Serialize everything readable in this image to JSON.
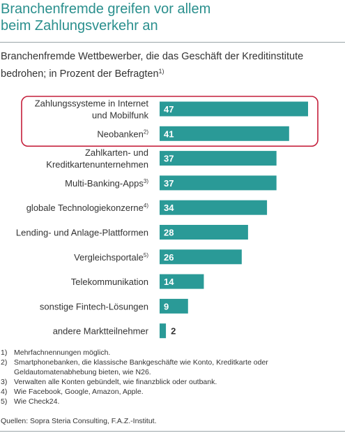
{
  "title_lines": [
    "Branchenfremde greifen vor allem",
    "beim Zahlungsverkehr an"
  ],
  "subtitle": {
    "line1": "Branchenfremde Wettbewerber, die das Geschäft der Kreditinstitute",
    "line2": "bedrohen; in Prozent der Befragten",
    "footnote_ref": "1)"
  },
  "chart_data": {
    "type": "bar",
    "orientation": "horizontal",
    "categories": [
      {
        "lines": [
          "Zahlungssysteme in Internet",
          "und Mobilfunk"
        ],
        "footnote": ""
      },
      {
        "lines": [
          "Neobanken"
        ],
        "footnote": "2)"
      },
      {
        "lines": [
          "Zahlkarten- und",
          "Kreditkartenunternehmen"
        ],
        "footnote": ""
      },
      {
        "lines": [
          "Multi-Banking-Apps"
        ],
        "footnote": "3)"
      },
      {
        "lines": [
          "globale Technologiekonzerne"
        ],
        "footnote": "4)"
      },
      {
        "lines": [
          "Lending- und Anlage-Plattformen"
        ],
        "footnote": ""
      },
      {
        "lines": [
          "Vergleichsportale"
        ],
        "footnote": "5)"
      },
      {
        "lines": [
          "Telekommunikation"
        ],
        "footnote": ""
      },
      {
        "lines": [
          "sonstige Fintech-Lösungen"
        ],
        "footnote": ""
      },
      {
        "lines": [
          "andere Marktteilnehmer"
        ],
        "footnote": ""
      }
    ],
    "values": [
      47,
      41,
      37,
      37,
      34,
      28,
      26,
      14,
      9,
      2
    ],
    "highlighted_indices": [
      0,
      1
    ],
    "xlim": [
      0,
      47
    ],
    "grid": false,
    "legend": false,
    "colors": {
      "bar": "#2a9a97",
      "label_inside": "#ffffff",
      "label_outside": "#333333",
      "highlight": "#c41e3a"
    }
  },
  "footnotes": [
    {
      "num": "1)",
      "text": "Mehrfachnennungen möglich."
    },
    {
      "num": "2)",
      "text": "Smartphonebanken, die klassische Bankgeschäfte wie Konto, Kreditkarte oder Geldautomatenabhebung bieten, wie N26."
    },
    {
      "num": "3)",
      "text": "Verwalten alle Konten gebündelt, wie finanzblick oder outbank."
    },
    {
      "num": "4)",
      "text": "Wie Facebook, Google, Amazon, Apple."
    },
    {
      "num": "5)",
      "text": "Wie Check24."
    }
  ],
  "source": "Quellen: Sopra Steria Consulting, F.A.Z.-Institut."
}
